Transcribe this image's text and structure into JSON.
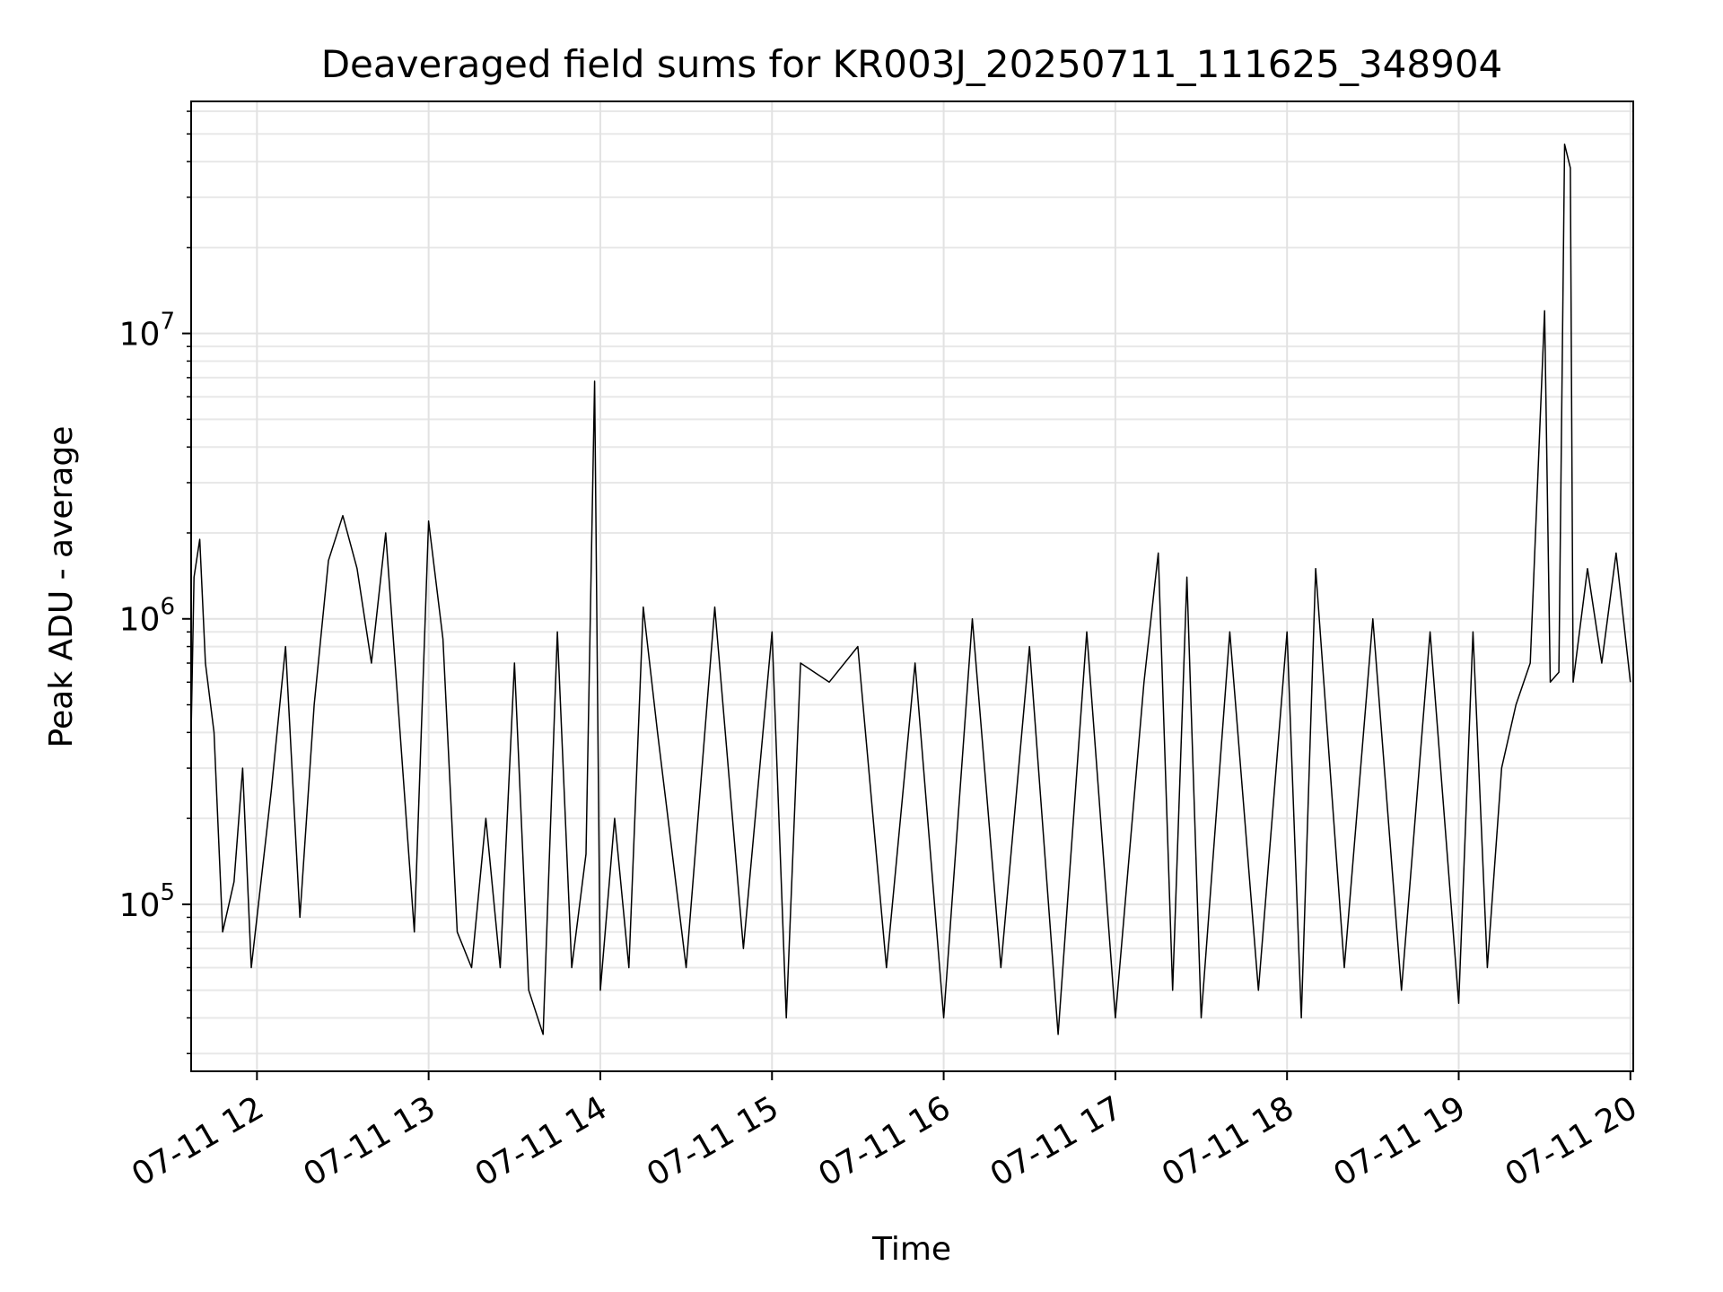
{
  "chart_data": {
    "type": "line",
    "title": "Deaveraged field sums for KR003J_20250711_111625_348904",
    "xlabel": "Time",
    "ylabel": "Peak ADU - average",
    "yscale": "log",
    "ylim": [
      26000,
      65000000
    ],
    "xlim": [
      "07-11 11:37",
      "07-11 20:01"
    ],
    "grid": "major and minor",
    "line_color": "#000000",
    "x_ticks": [
      "07-11 12",
      "07-11 13",
      "07-11 14",
      "07-11 15",
      "07-11 16",
      "07-11 17",
      "07-11 18",
      "07-11 19",
      "07-11 20"
    ],
    "y_ticks": [
      {
        "value": 100000,
        "base": "10",
        "exp": "5"
      },
      {
        "value": 1000000,
        "base": "10",
        "exp": "6"
      },
      {
        "value": 10000000,
        "base": "10",
        "exp": "7"
      }
    ],
    "series": [
      {
        "name": "",
        "points": [
          [
            "07-11 11:37",
            400000
          ],
          [
            "07-11 11:38",
            1400000
          ],
          [
            "07-11 11:40",
            1900000
          ],
          [
            "07-11 11:42",
            700000
          ],
          [
            "07-11 11:45",
            400000
          ],
          [
            "07-11 11:48",
            80000
          ],
          [
            "07-11 11:52",
            120000
          ],
          [
            "07-11 11:55",
            300000
          ],
          [
            "07-11 11:58",
            60000
          ],
          [
            "07-11 12:05",
            250000
          ],
          [
            "07-11 12:10",
            800000
          ],
          [
            "07-11 12:15",
            90000
          ],
          [
            "07-11 12:20",
            500000
          ],
          [
            "07-11 12:25",
            1600000
          ],
          [
            "07-11 12:30",
            2300000
          ],
          [
            "07-11 12:35",
            1500000
          ],
          [
            "07-11 12:40",
            700000
          ],
          [
            "07-11 12:45",
            2000000
          ],
          [
            "07-11 12:50",
            400000
          ],
          [
            "07-11 12:55",
            80000
          ],
          [
            "07-11 13:00",
            2200000
          ],
          [
            "07-11 13:05",
            850000
          ],
          [
            "07-11 13:10",
            80000
          ],
          [
            "07-11 13:15",
            60000
          ],
          [
            "07-11 13:20",
            200000
          ],
          [
            "07-11 13:25",
            60000
          ],
          [
            "07-11 13:30",
            700000
          ],
          [
            "07-11 13:35",
            50000
          ],
          [
            "07-11 13:40",
            35000
          ],
          [
            "07-11 13:45",
            900000
          ],
          [
            "07-11 13:50",
            60000
          ],
          [
            "07-11 13:55",
            150000
          ],
          [
            "07-11 13:58",
            6800000
          ],
          [
            "07-11 14:00",
            50000
          ],
          [
            "07-11 14:05",
            200000
          ],
          [
            "07-11 14:10",
            60000
          ],
          [
            "07-11 14:15",
            1100000
          ],
          [
            "07-11 14:20",
            400000
          ],
          [
            "07-11 14:30",
            60000
          ],
          [
            "07-11 14:40",
            1100000
          ],
          [
            "07-11 14:50",
            70000
          ],
          [
            "07-11 15:00",
            900000
          ],
          [
            "07-11 15:05",
            40000
          ],
          [
            "07-11 15:10",
            700000
          ],
          [
            "07-11 15:20",
            600000
          ],
          [
            "07-11 15:30",
            800000
          ],
          [
            "07-11 15:40",
            60000
          ],
          [
            "07-11 15:50",
            700000
          ],
          [
            "07-11 16:00",
            40000
          ],
          [
            "07-11 16:10",
            1000000
          ],
          [
            "07-11 16:20",
            60000
          ],
          [
            "07-11 16:30",
            800000
          ],
          [
            "07-11 16:40",
            35000
          ],
          [
            "07-11 16:50",
            900000
          ],
          [
            "07-11 17:00",
            40000
          ],
          [
            "07-11 17:10",
            600000
          ],
          [
            "07-11 17:15",
            1700000
          ],
          [
            "07-11 17:20",
            50000
          ],
          [
            "07-11 17:25",
            1400000
          ],
          [
            "07-11 17:30",
            40000
          ],
          [
            "07-11 17:40",
            900000
          ],
          [
            "07-11 17:50",
            50000
          ],
          [
            "07-11 18:00",
            900000
          ],
          [
            "07-11 18:05",
            40000
          ],
          [
            "07-11 18:10",
            1500000
          ],
          [
            "07-11 18:20",
            60000
          ],
          [
            "07-11 18:30",
            1000000
          ],
          [
            "07-11 18:40",
            50000
          ],
          [
            "07-11 18:50",
            900000
          ],
          [
            "07-11 19:00",
            45000
          ],
          [
            "07-11 19:05",
            900000
          ],
          [
            "07-11 19:10",
            60000
          ],
          [
            "07-11 19:15",
            300000
          ],
          [
            "07-11 19:20",
            500000
          ],
          [
            "07-11 19:25",
            700000
          ],
          [
            "07-11 19:30",
            12000000
          ],
          [
            "07-11 19:32",
            600000
          ],
          [
            "07-11 19:35",
            650000
          ],
          [
            "07-11 19:37",
            46000000
          ],
          [
            "07-11 19:39",
            38000000
          ],
          [
            "07-11 19:40",
            600000
          ],
          [
            "07-11 19:45",
            1500000
          ],
          [
            "07-11 19:50",
            700000
          ],
          [
            "07-11 19:55",
            1700000
          ],
          [
            "07-11 20:00",
            600000
          ]
        ]
      }
    ]
  }
}
